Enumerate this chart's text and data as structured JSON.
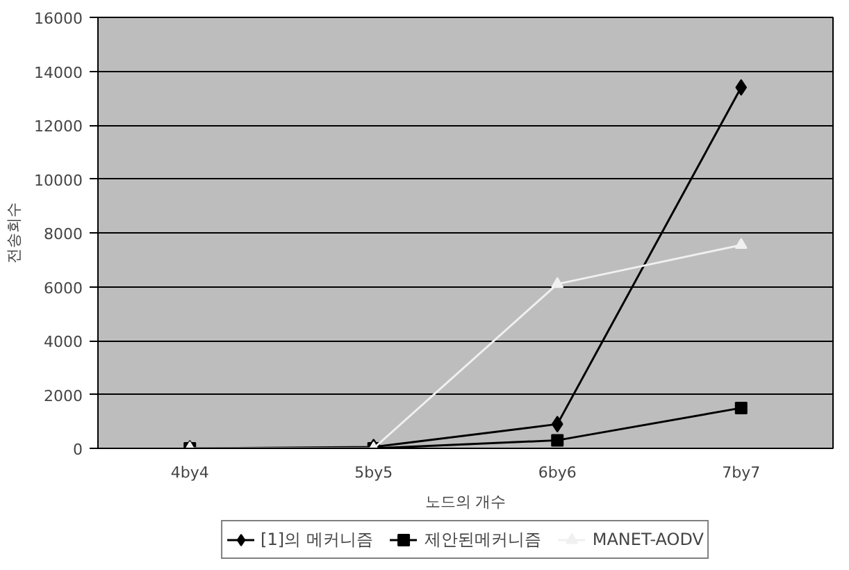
{
  "chart_data": {
    "type": "line",
    "xlabel": "노드의 개수",
    "ylabel": "전송회수",
    "categories": [
      "4by4",
      "5by5",
      "6by6",
      "7by7"
    ],
    "series": [
      {
        "name": "[1]의 메커니즘",
        "color": "#000000",
        "marker": "diamond",
        "values": [
          0,
          50,
          900,
          13400
        ]
      },
      {
        "name": "제안된메커니즘",
        "color": "#000000",
        "marker": "square",
        "values": [
          0,
          0,
          300,
          1500
        ]
      },
      {
        "name": "MANET-AODV",
        "color": "#f0f0f0",
        "marker": "triangle",
        "values": [
          0,
          0,
          6100,
          7550
        ]
      }
    ],
    "ylim": [
      0,
      16000
    ],
    "yticks": [
      0,
      2000,
      4000,
      6000,
      8000,
      10000,
      12000,
      14000,
      16000
    ],
    "grid": "y",
    "legend": "bottom",
    "line_style": "solid"
  }
}
